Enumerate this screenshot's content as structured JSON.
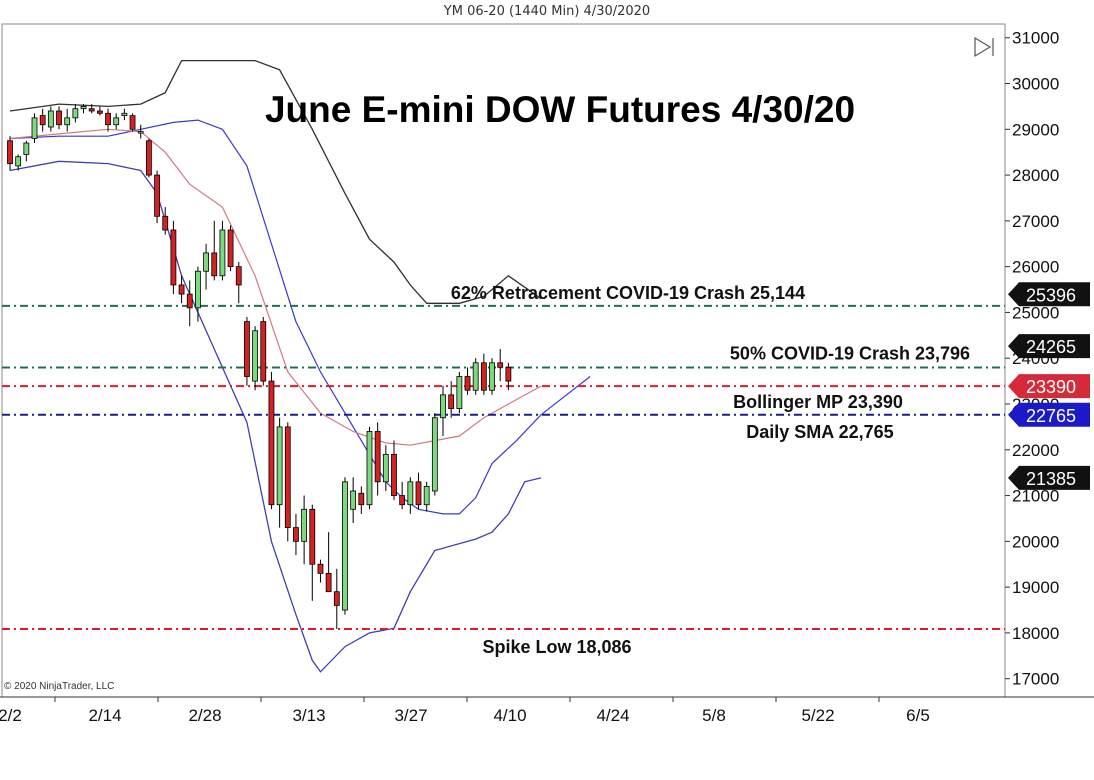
{
  "window": {
    "title": "YM 06-20 (1440 Min)  4/30/2020",
    "copyright": "© 2020 NinjaTrader, LLC"
  },
  "colors": {
    "up": "#7ed87e",
    "down": "#d42222",
    "wick": "#000000",
    "upper_band": "#303030",
    "lower_band": "#4040b0",
    "sma": "#3a3acc",
    "mid": "#d07a80",
    "retrace": "#207050",
    "boll": "#e01830",
    "daily_sma": "#1a1a99"
  },
  "chart_data": {
    "type": "candlestick",
    "title": "June E-mini DOW Futures 4/30/20",
    "x_labels": [
      "2/2",
      "2/14",
      "2/28",
      "3/13",
      "3/27",
      "4/10",
      "4/24",
      "5/8",
      "5/22",
      "6/5"
    ],
    "ylim": [
      16600,
      31300
    ],
    "y_ticks": [
      17000,
      18000,
      19000,
      20000,
      21000,
      22000,
      23000,
      24000,
      25000,
      26000,
      27000,
      28000,
      29000,
      30000,
      31000
    ],
    "candles": [
      {
        "date": "2/3",
        "o": 28750,
        "h": 28850,
        "l": 28100,
        "c": 28250
      },
      {
        "date": "2/4",
        "o": 28200,
        "h": 28450,
        "l": 28100,
        "c": 28400
      },
      {
        "date": "2/5",
        "o": 28450,
        "h": 28750,
        "l": 28300,
        "c": 28700
      },
      {
        "date": "2/6",
        "o": 28800,
        "h": 29350,
        "l": 28700,
        "c": 29250
      },
      {
        "date": "2/7",
        "o": 29300,
        "h": 29450,
        "l": 28950,
        "c": 29100
      },
      {
        "date": "2/10",
        "o": 29050,
        "h": 29500,
        "l": 28950,
        "c": 29400
      },
      {
        "date": "2/11",
        "o": 29400,
        "h": 29500,
        "l": 29000,
        "c": 29100
      },
      {
        "date": "2/12",
        "o": 29100,
        "h": 29450,
        "l": 28950,
        "c": 29250
      },
      {
        "date": "2/13",
        "o": 29250,
        "h": 29550,
        "l": 29150,
        "c": 29450
      },
      {
        "date": "2/14",
        "o": 29450,
        "h": 29550,
        "l": 29350,
        "c": 29500
      },
      {
        "date": "2/18",
        "o": 29450,
        "h": 29550,
        "l": 29350,
        "c": 29400
      },
      {
        "date": "2/19",
        "o": 29400,
        "h": 29500,
        "l": 29300,
        "c": 29350
      },
      {
        "date": "2/20",
        "o": 29350,
        "h": 29450,
        "l": 28950,
        "c": 29100
      },
      {
        "date": "2/21",
        "o": 29100,
        "h": 29350,
        "l": 29000,
        "c": 29250
      },
      {
        "date": "2/24",
        "o": 29300,
        "h": 29450,
        "l": 29200,
        "c": 29350
      },
      {
        "date": "2/25",
        "o": 29300,
        "h": 29350,
        "l": 28950,
        "c": 29000
      },
      {
        "date": "2/26",
        "o": 28950,
        "h": 29100,
        "l": 28800,
        "c": 28950
      },
      {
        "date": "2/27",
        "o": 28750,
        "h": 28800,
        "l": 27950,
        "c": 28000
      },
      {
        "date": "2/28",
        "o": 28000,
        "h": 28100,
        "l": 26950,
        "c": 27100
      },
      {
        "date": "3/2",
        "o": 27100,
        "h": 27300,
        "l": 26700,
        "c": 26800
      },
      {
        "date": "3/3",
        "o": 26800,
        "h": 27000,
        "l": 25400,
        "c": 25600
      },
      {
        "date": "3/4",
        "o": 25600,
        "h": 25800,
        "l": 25200,
        "c": 25400
      },
      {
        "date": "3/5",
        "o": 25400,
        "h": 25700,
        "l": 24700,
        "c": 25100
      },
      {
        "date": "3/6",
        "o": 25100,
        "h": 26000,
        "l": 24800,
        "c": 25900
      },
      {
        "date": "3/9",
        "o": 25900,
        "h": 26500,
        "l": 25500,
        "c": 26300
      },
      {
        "date": "3/10",
        "o": 26300,
        "h": 27000,
        "l": 25700,
        "c": 25800
      },
      {
        "date": "3/11",
        "o": 25800,
        "h": 27000,
        "l": 25700,
        "c": 26800
      },
      {
        "date": "3/12",
        "o": 26800,
        "h": 26900,
        "l": 25900,
        "c": 26000
      },
      {
        "date": "3/13",
        "o": 26000,
        "h": 26100,
        "l": 25200,
        "c": 25600
      },
      {
        "date": "3/16",
        "o": 24800,
        "h": 24900,
        "l": 23400,
        "c": 23600
      },
      {
        "date": "3/17",
        "o": 23500,
        "h": 24700,
        "l": 23300,
        "c": 24600
      },
      {
        "date": "3/18",
        "o": 24800,
        "h": 24900,
        "l": 23400,
        "c": 23500
      },
      {
        "date": "3/19",
        "o": 23500,
        "h": 23700,
        "l": 20700,
        "c": 20800
      },
      {
        "date": "3/20",
        "o": 20800,
        "h": 22700,
        "l": 20300,
        "c": 22500
      },
      {
        "date": "3/23",
        "o": 22500,
        "h": 22600,
        "l": 20000,
        "c": 20300
      },
      {
        "date": "3/24",
        "o": 20300,
        "h": 20600,
        "l": 19700,
        "c": 20000
      },
      {
        "date": "3/25",
        "o": 20000,
        "h": 21000,
        "l": 19500,
        "c": 20700
      },
      {
        "date": "3/26",
        "o": 20700,
        "h": 20800,
        "l": 18700,
        "c": 19500
      },
      {
        "date": "3/27",
        "o": 19500,
        "h": 19600,
        "l": 19100,
        "c": 19300
      },
      {
        "date": "3/30",
        "o": 19300,
        "h": 20200,
        "l": 18900,
        "c": 18900
      },
      {
        "date": "3/31",
        "o": 18900,
        "h": 19400,
        "l": 18086,
        "c": 18600
      },
      {
        "date": "4/1",
        "o": 18500,
        "h": 21400,
        "l": 18400,
        "c": 21300
      },
      {
        "date": "4/2",
        "o": 20700,
        "h": 21400,
        "l": 20400,
        "c": 21100
      },
      {
        "date": "4/3",
        "o": 21050,
        "h": 21200,
        "l": 20600,
        "c": 20800
      },
      {
        "date": "4/6",
        "o": 20800,
        "h": 22500,
        "l": 20700,
        "c": 22400
      },
      {
        "date": "4/7",
        "o": 22400,
        "h": 22600,
        "l": 21000,
        "c": 21300
      },
      {
        "date": "4/8",
        "o": 21300,
        "h": 22100,
        "l": 21100,
        "c": 21900
      },
      {
        "date": "4/9",
        "o": 21900,
        "h": 22200,
        "l": 20900,
        "c": 21000
      },
      {
        "date": "4/13",
        "o": 21000,
        "h": 21300,
        "l": 20700,
        "c": 20800
      },
      {
        "date": "4/14",
        "o": 20800,
        "h": 21400,
        "l": 20600,
        "c": 21300
      },
      {
        "date": "4/15",
        "o": 21300,
        "h": 21500,
        "l": 20700,
        "c": 20800
      },
      {
        "date": "4/16",
        "o": 20800,
        "h": 21300,
        "l": 20650,
        "c": 21200
      },
      {
        "date": "4/17",
        "o": 21100,
        "h": 22800,
        "l": 21000,
        "c": 22700
      },
      {
        "date": "4/20",
        "o": 22700,
        "h": 23400,
        "l": 22300,
        "c": 23200
      },
      {
        "date": "4/21",
        "o": 23200,
        "h": 23500,
        "l": 22700,
        "c": 22900
      },
      {
        "date": "4/22",
        "o": 22900,
        "h": 23700,
        "l": 22800,
        "c": 23600
      },
      {
        "date": "4/23",
        "o": 23600,
        "h": 23800,
        "l": 23200,
        "c": 23300
      },
      {
        "date": "4/24",
        "o": 23300,
        "h": 24000,
        "l": 23200,
        "c": 23900
      },
      {
        "date": "4/27",
        "o": 23900,
        "h": 24100,
        "l": 23200,
        "c": 23300
      },
      {
        "date": "4/28",
        "o": 23300,
        "h": 24000,
        "l": 23200,
        "c": 23900
      },
      {
        "date": "4/29",
        "o": 23900,
        "h": 24200,
        "l": 23500,
        "c": 23800
      },
      {
        "date": "4/30",
        "o": 23800,
        "h": 23900,
        "l": 23300,
        "c": 23500
      }
    ],
    "upper_band": [
      {
        "i": 0,
        "v": 29400
      },
      {
        "i": 6,
        "v": 29550
      },
      {
        "i": 12,
        "v": 29500
      },
      {
        "i": 16,
        "v": 29550
      },
      {
        "i": 19,
        "v": 29800
      },
      {
        "i": 21,
        "v": 30500
      },
      {
        "i": 26,
        "v": 30500
      },
      {
        "i": 30,
        "v": 30500
      },
      {
        "i": 33,
        "v": 30300
      },
      {
        "i": 37,
        "v": 29000
      },
      {
        "i": 41,
        "v": 27600
      },
      {
        "i": 44,
        "v": 26600
      },
      {
        "i": 47,
        "v": 26100
      },
      {
        "i": 49,
        "v": 25600
      },
      {
        "i": 51,
        "v": 25200
      },
      {
        "i": 55,
        "v": 25200
      },
      {
        "i": 58,
        "v": 25350
      },
      {
        "i": 61,
        "v": 25800
      },
      {
        "i": 63,
        "v": 25550
      },
      {
        "i": 65,
        "v": 25300
      }
    ],
    "lower_band": [
      {
        "i": 0,
        "v": 28100
      },
      {
        "i": 6,
        "v": 28300
      },
      {
        "i": 12,
        "v": 28250
      },
      {
        "i": 16,
        "v": 28100
      },
      {
        "i": 18,
        "v": 27600
      },
      {
        "i": 21,
        "v": 25800
      },
      {
        "i": 25,
        "v": 24200
      },
      {
        "i": 29,
        "v": 22600
      },
      {
        "i": 32,
        "v": 20000
      },
      {
        "i": 35,
        "v": 18400
      },
      {
        "i": 37,
        "v": 17400
      },
      {
        "i": 38,
        "v": 17150
      },
      {
        "i": 41,
        "v": 17700
      },
      {
        "i": 44,
        "v": 18000
      },
      {
        "i": 47,
        "v": 18100
      },
      {
        "i": 49,
        "v": 18900
      },
      {
        "i": 52,
        "v": 19800
      },
      {
        "i": 55,
        "v": 19950
      },
      {
        "i": 57,
        "v": 20050
      },
      {
        "i": 59,
        "v": 20200
      },
      {
        "i": 61,
        "v": 20600
      },
      {
        "i": 63,
        "v": 21300
      },
      {
        "i": 65,
        "v": 21385
      }
    ],
    "sma_line": [
      {
        "i": 0,
        "v": 28800
      },
      {
        "i": 6,
        "v": 28850
      },
      {
        "i": 12,
        "v": 28850
      },
      {
        "i": 16,
        "v": 29000
      },
      {
        "i": 20,
        "v": 29150
      },
      {
        "i": 23,
        "v": 29200
      },
      {
        "i": 26,
        "v": 29000
      },
      {
        "i": 29,
        "v": 28200
      },
      {
        "i": 32,
        "v": 26500
      },
      {
        "i": 35,
        "v": 24800
      },
      {
        "i": 38,
        "v": 23700
      },
      {
        "i": 41,
        "v": 22800
      },
      {
        "i": 44,
        "v": 21900
      },
      {
        "i": 46,
        "v": 21300
      },
      {
        "i": 48,
        "v": 20950
      },
      {
        "i": 50,
        "v": 20700
      },
      {
        "i": 53,
        "v": 20600
      },
      {
        "i": 55,
        "v": 20600
      },
      {
        "i": 57,
        "v": 20950
      },
      {
        "i": 59,
        "v": 21700
      },
      {
        "i": 62,
        "v": 22200
      },
      {
        "i": 65,
        "v": 22765
      },
      {
        "i": 71,
        "v": 23600
      }
    ],
    "mid_line": [
      {
        "i": 0,
        "v": 28800
      },
      {
        "i": 6,
        "v": 28900
      },
      {
        "i": 12,
        "v": 29000
      },
      {
        "i": 16,
        "v": 28950
      },
      {
        "i": 19,
        "v": 28500
      },
      {
        "i": 22,
        "v": 27800
      },
      {
        "i": 26,
        "v": 27300
      },
      {
        "i": 30,
        "v": 25800
      },
      {
        "i": 34,
        "v": 23700
      },
      {
        "i": 38,
        "v": 22800
      },
      {
        "i": 42,
        "v": 22400
      },
      {
        "i": 46,
        "v": 22150
      },
      {
        "i": 49,
        "v": 22100
      },
      {
        "i": 52,
        "v": 22200
      },
      {
        "i": 55,
        "v": 22300
      },
      {
        "i": 58,
        "v": 22700
      },
      {
        "i": 61,
        "v": 23000
      },
      {
        "i": 65,
        "v": 23390
      }
    ],
    "levels": [
      {
        "name": "retrace",
        "value": 25144,
        "label": "62% Retracement COVID-19 Crash 25,144",
        "color": "#207050"
      },
      {
        "name": "fifty",
        "value": 23796,
        "label": "50% COVID-19 Crash 23,796",
        "color": "#207050"
      },
      {
        "name": "boll",
        "value": 23390,
        "label": "Bollinger MP 23,390",
        "color": "#e01830"
      },
      {
        "name": "sma",
        "value": 22765,
        "label": "Daily SMA 22,765",
        "color": "#1a1a99"
      },
      {
        "name": "low",
        "value": 18086,
        "label": "Spike Low 18,086",
        "color": "#e01830"
      }
    ],
    "price_tags": [
      {
        "value": 25396,
        "label": "25396",
        "bg": "#111111",
        "fg": "#ffffff"
      },
      {
        "value": 24265,
        "label": "24265",
        "bg": "#111111",
        "fg": "#ffffff"
      },
      {
        "value": 23390,
        "label": "23390",
        "bg": "#d42a3a",
        "fg": "#ffffff"
      },
      {
        "value": 22765,
        "label": "22765",
        "bg": "#1a1ac8",
        "fg": "#ffffff"
      },
      {
        "value": 21385,
        "label": "21385",
        "bg": "#111111",
        "fg": "#ffffff"
      }
    ]
  }
}
